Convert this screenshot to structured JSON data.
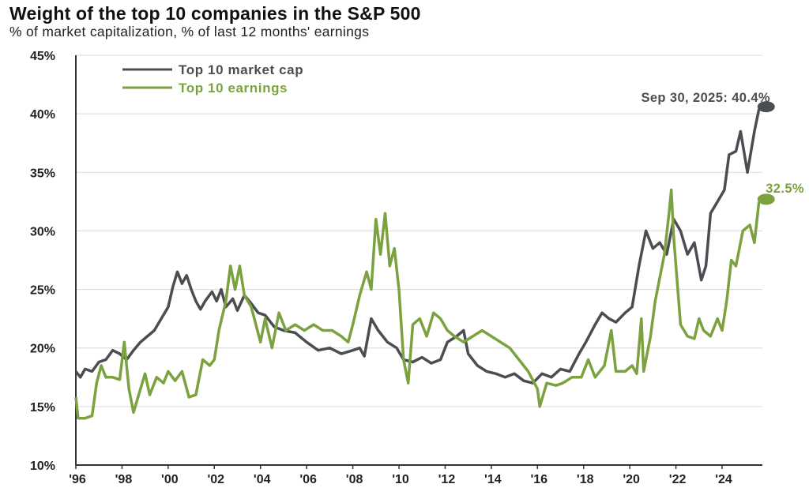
{
  "chart_data": {
    "type": "line",
    "title": "Weight of the top 10 companies in the S&P 500",
    "subtitle": "% of market capitalization, % of last 12 months' earnings",
    "xlabel": "",
    "ylabel": "",
    "ylim": [
      10,
      45
    ],
    "xlim": [
      1996,
      2025.9
    ],
    "grid": true,
    "legend_position": "top-left",
    "yticks": [
      10,
      15,
      20,
      25,
      30,
      35,
      40,
      45
    ],
    "ytick_labels": [
      "10%",
      "15%",
      "20%",
      "25%",
      "30%",
      "35%",
      "40%",
      "45%"
    ],
    "xticks": [
      1996,
      1998,
      2000,
      2002,
      2004,
      2006,
      2008,
      2010,
      2012,
      2014,
      2016,
      2018,
      2020,
      2022,
      2024
    ],
    "xtick_labels": [
      "'96",
      "'98",
      "'00",
      "'02",
      "'04",
      "'06",
      "'08",
      "'10",
      "'12",
      "'14",
      "'16",
      "'18",
      "'20",
      "'22",
      "'24"
    ],
    "series": [
      {
        "name": "Top 10 market cap",
        "color": "#4a4d52",
        "points": [
          [
            1996.0,
            18.0
          ],
          [
            1996.2,
            17.5
          ],
          [
            1996.4,
            18.2
          ],
          [
            1996.7,
            18.0
          ],
          [
            1997.0,
            18.8
          ],
          [
            1997.3,
            19.0
          ],
          [
            1997.6,
            19.8
          ],
          [
            1997.9,
            19.5
          ],
          [
            1998.2,
            19.0
          ],
          [
            1998.5,
            19.8
          ],
          [
            1998.8,
            20.5
          ],
          [
            1999.1,
            21.0
          ],
          [
            1999.4,
            21.5
          ],
          [
            1999.7,
            22.5
          ],
          [
            2000.0,
            23.5
          ],
          [
            2000.2,
            25.2
          ],
          [
            2000.4,
            26.5
          ],
          [
            2000.6,
            25.5
          ],
          [
            2000.8,
            26.2
          ],
          [
            2001.0,
            25.0
          ],
          [
            2001.2,
            24.0
          ],
          [
            2001.4,
            23.3
          ],
          [
            2001.6,
            24.0
          ],
          [
            2001.9,
            24.8
          ],
          [
            2002.1,
            24.0
          ],
          [
            2002.3,
            25.0
          ],
          [
            2002.5,
            23.5
          ],
          [
            2002.8,
            24.2
          ],
          [
            2003.0,
            23.2
          ],
          [
            2003.3,
            24.5
          ],
          [
            2003.6,
            23.8
          ],
          [
            2003.9,
            23.0
          ],
          [
            2004.2,
            22.8
          ],
          [
            2004.6,
            21.8
          ],
          [
            2005.0,
            21.5
          ],
          [
            2005.5,
            21.3
          ],
          [
            2006.0,
            20.5
          ],
          [
            2006.5,
            19.8
          ],
          [
            2007.0,
            20.0
          ],
          [
            2007.5,
            19.5
          ],
          [
            2008.0,
            19.8
          ],
          [
            2008.3,
            20.0
          ],
          [
            2008.5,
            19.3
          ],
          [
            2008.8,
            22.5
          ],
          [
            2009.1,
            21.5
          ],
          [
            2009.5,
            20.5
          ],
          [
            2009.9,
            20.0
          ],
          [
            2010.2,
            19.0
          ],
          [
            2010.6,
            18.8
          ],
          [
            2011.0,
            19.2
          ],
          [
            2011.4,
            18.7
          ],
          [
            2011.8,
            19.0
          ],
          [
            2012.1,
            20.5
          ],
          [
            2012.5,
            21.0
          ],
          [
            2012.8,
            21.5
          ],
          [
            2013.0,
            19.5
          ],
          [
            2013.4,
            18.5
          ],
          [
            2013.8,
            18.0
          ],
          [
            2014.2,
            17.8
          ],
          [
            2014.6,
            17.5
          ],
          [
            2015.0,
            17.8
          ],
          [
            2015.4,
            17.2
          ],
          [
            2015.8,
            17.0
          ],
          [
            2016.2,
            17.8
          ],
          [
            2016.6,
            17.5
          ],
          [
            2017.0,
            18.2
          ],
          [
            2017.4,
            18.0
          ],
          [
            2017.8,
            19.5
          ],
          [
            2018.1,
            20.5
          ],
          [
            2018.5,
            22.0
          ],
          [
            2018.8,
            23.0
          ],
          [
            2019.1,
            22.5
          ],
          [
            2019.4,
            22.2
          ],
          [
            2019.8,
            23.0
          ],
          [
            2020.1,
            23.5
          ],
          [
            2020.4,
            27.0
          ],
          [
            2020.7,
            30.0
          ],
          [
            2021.0,
            28.5
          ],
          [
            2021.3,
            29.0
          ],
          [
            2021.6,
            28.0
          ],
          [
            2021.9,
            31.0
          ],
          [
            2022.2,
            30.0
          ],
          [
            2022.5,
            28.0
          ],
          [
            2022.8,
            29.0
          ],
          [
            2023.1,
            25.8
          ],
          [
            2023.3,
            27.0
          ],
          [
            2023.5,
            31.5
          ],
          [
            2023.8,
            32.5
          ],
          [
            2024.1,
            33.5
          ],
          [
            2024.3,
            36.5
          ],
          [
            2024.6,
            36.8
          ],
          [
            2024.8,
            38.5
          ],
          [
            2025.1,
            35.0
          ],
          [
            2025.4,
            38.5
          ],
          [
            2025.6,
            40.4
          ]
        ]
      },
      {
        "name": "Top 10 earnings",
        "color": "#7ba23f",
        "points": [
          [
            1996.0,
            15.8
          ],
          [
            1996.1,
            14.0
          ],
          [
            1996.4,
            14.0
          ],
          [
            1996.7,
            14.2
          ],
          [
            1996.9,
            17.0
          ],
          [
            1997.1,
            18.5
          ],
          [
            1997.3,
            17.5
          ],
          [
            1997.6,
            17.5
          ],
          [
            1997.9,
            17.3
          ],
          [
            1998.1,
            20.5
          ],
          [
            1998.3,
            16.5
          ],
          [
            1998.5,
            14.5
          ],
          [
            1998.8,
            16.5
          ],
          [
            1999.0,
            17.8
          ],
          [
            1999.2,
            16.0
          ],
          [
            1999.5,
            17.5
          ],
          [
            1999.8,
            17.0
          ],
          [
            2000.0,
            18.0
          ],
          [
            2000.3,
            17.2
          ],
          [
            2000.6,
            18.0
          ],
          [
            2000.9,
            15.8
          ],
          [
            2001.2,
            16.0
          ],
          [
            2001.5,
            19.0
          ],
          [
            2001.8,
            18.5
          ],
          [
            2002.0,
            19.0
          ],
          [
            2002.2,
            21.5
          ],
          [
            2002.5,
            24.0
          ],
          [
            2002.7,
            27.0
          ],
          [
            2002.9,
            25.0
          ],
          [
            2003.1,
            27.0
          ],
          [
            2003.3,
            24.5
          ],
          [
            2003.6,
            23.5
          ],
          [
            2003.8,
            22.0
          ],
          [
            2004.0,
            20.5
          ],
          [
            2004.2,
            22.5
          ],
          [
            2004.5,
            20.0
          ],
          [
            2004.8,
            23.0
          ],
          [
            2005.1,
            21.5
          ],
          [
            2005.5,
            22.0
          ],
          [
            2005.9,
            21.5
          ],
          [
            2006.3,
            22.0
          ],
          [
            2006.7,
            21.5
          ],
          [
            2007.1,
            21.5
          ],
          [
            2007.5,
            21.0
          ],
          [
            2007.8,
            20.5
          ],
          [
            2008.0,
            22.0
          ],
          [
            2008.3,
            24.5
          ],
          [
            2008.6,
            26.5
          ],
          [
            2008.8,
            25.0
          ],
          [
            2009.0,
            31.0
          ],
          [
            2009.2,
            28.0
          ],
          [
            2009.4,
            31.5
          ],
          [
            2009.6,
            27.0
          ],
          [
            2009.8,
            28.5
          ],
          [
            2010.0,
            25.0
          ],
          [
            2010.2,
            19.0
          ],
          [
            2010.4,
            17.0
          ],
          [
            2010.6,
            22.0
          ],
          [
            2010.9,
            22.5
          ],
          [
            2011.2,
            21.0
          ],
          [
            2011.5,
            23.0
          ],
          [
            2011.8,
            22.5
          ],
          [
            2012.1,
            21.5
          ],
          [
            2012.4,
            21.0
          ],
          [
            2012.8,
            20.5
          ],
          [
            2013.2,
            21.0
          ],
          [
            2013.6,
            21.5
          ],
          [
            2014.0,
            21.0
          ],
          [
            2014.4,
            20.5
          ],
          [
            2014.8,
            20.0
          ],
          [
            2015.2,
            19.0
          ],
          [
            2015.6,
            18.0
          ],
          [
            2016.0,
            16.5
          ],
          [
            2016.1,
            15.0
          ],
          [
            2016.4,
            17.0
          ],
          [
            2016.8,
            16.8
          ],
          [
            2017.1,
            17.0
          ],
          [
            2017.5,
            17.5
          ],
          [
            2017.9,
            17.5
          ],
          [
            2018.2,
            19.0
          ],
          [
            2018.5,
            17.5
          ],
          [
            2018.9,
            18.5
          ],
          [
            2019.2,
            21.5
          ],
          [
            2019.4,
            18.0
          ],
          [
            2019.8,
            18.0
          ],
          [
            2020.1,
            18.5
          ],
          [
            2020.3,
            17.8
          ],
          [
            2020.5,
            22.5
          ],
          [
            2020.6,
            18.0
          ],
          [
            2020.9,
            21.0
          ],
          [
            2021.1,
            24.0
          ],
          [
            2021.3,
            26.0
          ],
          [
            2021.5,
            28.0
          ],
          [
            2021.7,
            31.5
          ],
          [
            2021.8,
            33.5
          ],
          [
            2021.9,
            29.5
          ],
          [
            2022.0,
            27.0
          ],
          [
            2022.2,
            22.0
          ],
          [
            2022.5,
            21.0
          ],
          [
            2022.8,
            20.8
          ],
          [
            2023.0,
            22.5
          ],
          [
            2023.2,
            21.5
          ],
          [
            2023.5,
            21.0
          ],
          [
            2023.8,
            22.5
          ],
          [
            2024.0,
            21.5
          ],
          [
            2024.2,
            24.0
          ],
          [
            2024.4,
            27.5
          ],
          [
            2024.6,
            27.0
          ],
          [
            2024.9,
            30.0
          ],
          [
            2025.2,
            30.5
          ],
          [
            2025.4,
            29.0
          ],
          [
            2025.6,
            32.5
          ]
        ]
      }
    ],
    "annotations": [
      {
        "series": "Top 10 market cap",
        "text": "Sep 30, 2025: 40.4%",
        "x": 2025.75,
        "y": 40.4
      },
      {
        "series": "Top 10 earnings",
        "text": "32.5%",
        "x": 2025.75,
        "y": 32.5
      }
    ]
  }
}
